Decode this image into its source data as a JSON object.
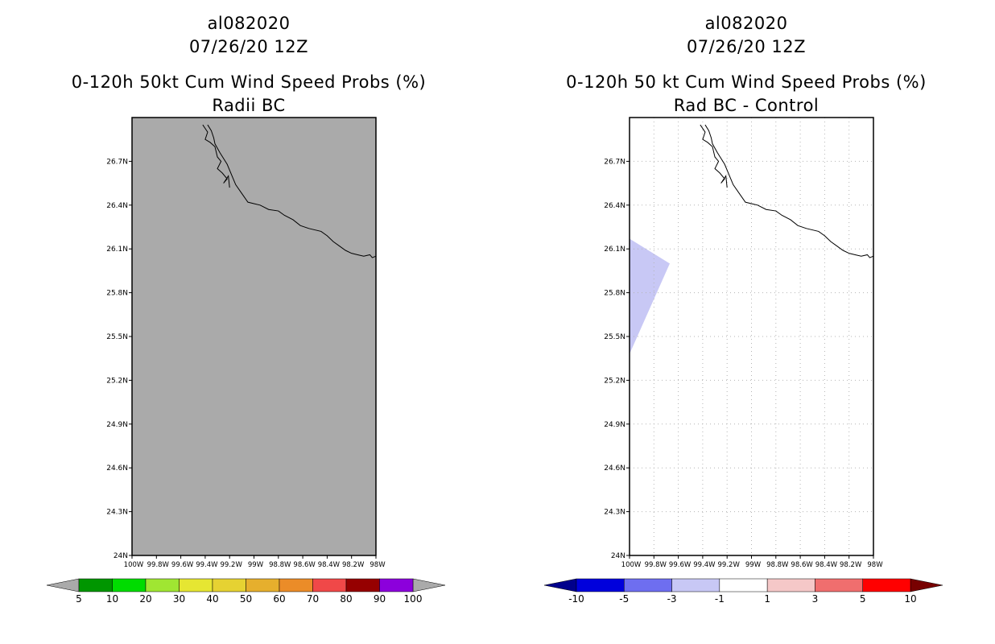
{
  "left_panel": {
    "storm": "al082020",
    "date": "07/26/20 12Z",
    "title": "0-120h 50kt Cum Wind Speed Probs (%)",
    "subtitle": "Radii BC"
  },
  "right_panel": {
    "storm": "al082020",
    "date": "07/26/20 12Z",
    "title": "0-120h 50 kt Cum Wind Speed Probs (%)",
    "subtitle": "Rad BC - Control"
  },
  "chart_data": [
    {
      "type": "heatmap",
      "name": "Radii BC",
      "xlim": [
        -100,
        -98
      ],
      "ylim": [
        24,
        27
      ],
      "x_ticks": [
        -100,
        -99.8,
        -99.6,
        -99.4,
        -99.2,
        -99,
        -98.8,
        -98.6,
        -98.4,
        -98.2,
        -98
      ],
      "x_tick_labels": [
        "100W",
        "99.8W",
        "99.6W",
        "99.4W",
        "99.2W",
        "99W",
        "98.8W",
        "98.6W",
        "98.4W",
        "98.2W",
        "98W"
      ],
      "y_ticks": [
        24,
        24.3,
        24.6,
        24.9,
        25.2,
        25.5,
        25.8,
        26.1,
        26.4,
        26.7
      ],
      "y_tick_labels": [
        "24N",
        "24.3N",
        "24.6N",
        "24.9N",
        "25.2N",
        "25.5N",
        "25.8N",
        "26.1N",
        "26.4N",
        "26.7N"
      ],
      "grid": false,
      "field_fill": "#aaaaaa",
      "colorbar": {
        "labels": [
          "5",
          "10",
          "20",
          "30",
          "40",
          "50",
          "60",
          "70",
          "80",
          "90",
          "100"
        ],
        "colors": [
          "#009600",
          "#00dc00",
          "#a0e632",
          "#e6e632",
          "#e6d232",
          "#e6af2d",
          "#eb8c28",
          "#f04848",
          "#960000",
          "#8c00dc"
        ],
        "under_color": "#aaaaaa",
        "over_color": "#aaaaaa"
      }
    },
    {
      "type": "heatmap",
      "name": "Rad BC - Control",
      "xlim": [
        -100,
        -98
      ],
      "ylim": [
        24,
        27
      ],
      "x_ticks": [
        -100,
        -99.8,
        -99.6,
        -99.4,
        -99.2,
        -99,
        -98.8,
        -98.6,
        -98.4,
        -98.2,
        -98
      ],
      "x_tick_labels": [
        "100W",
        "99.8W",
        "99.6W",
        "99.4W",
        "99.2W",
        "99W",
        "98.8W",
        "98.6W",
        "98.4W",
        "98.2W",
        "98W"
      ],
      "y_ticks": [
        24,
        24.3,
        24.6,
        24.9,
        25.2,
        25.5,
        25.8,
        26.1,
        26.4,
        26.7
      ],
      "y_tick_labels": [
        "24N",
        "24.3N",
        "24.6N",
        "24.9N",
        "25.2N",
        "25.5N",
        "25.8N",
        "26.1N",
        "26.4N",
        "26.7N"
      ],
      "grid": true,
      "shaded_region": {
        "label": "-3 to -1",
        "color": "#c8c8f5",
        "lon": [
          -100,
          -99.67,
          -100
        ],
        "lat": [
          26.17,
          26.0,
          25.38
        ]
      },
      "colorbar": {
        "labels": [
          "-10",
          "-5",
          "-3",
          "-1",
          "1",
          "3",
          "5",
          "10"
        ],
        "colors": [
          "#0000dc",
          "#6e6ef0",
          "#c8c8f5",
          "#ffffff",
          "#f5c8c8",
          "#f06e6e",
          "#ff0000"
        ],
        "under_color": "#00008c",
        "over_color": "#780000"
      }
    }
  ],
  "coastline": {
    "lon": [
      -99.38,
      -99.35,
      -99.33,
      -99.32,
      -99.28,
      -99.22,
      -99.18,
      -99.15,
      -99.1,
      -99.05,
      -99.0,
      -98.95,
      -98.88,
      -98.8,
      -98.75,
      -98.68,
      -98.62,
      -98.55,
      -98.45,
      -98.4,
      -98.35,
      -98.3,
      -98.25,
      -98.2,
      -98.15,
      -98.1,
      -98.05,
      -98.03,
      -98.0
    ],
    "lat": [
      26.95,
      26.91,
      26.86,
      26.82,
      26.76,
      26.68,
      26.6,
      26.54,
      26.48,
      26.42,
      26.41,
      26.4,
      26.37,
      26.36,
      26.33,
      26.3,
      26.26,
      26.24,
      26.22,
      26.19,
      26.15,
      26.12,
      26.09,
      26.07,
      26.06,
      26.05,
      26.06,
      26.04,
      26.05
    ]
  },
  "coastline_inlet": {
    "lon": [
      -99.42,
      -99.38,
      -99.4,
      -99.36,
      -99.32,
      -99.3,
      -99.27,
      -99.3,
      -99.26,
      -99.22,
      -99.25,
      -99.21,
      -99.2
    ],
    "lat": [
      26.95,
      26.9,
      26.85,
      26.83,
      26.8,
      26.73,
      26.7,
      26.65,
      26.62,
      26.58,
      26.55,
      26.6,
      26.52
    ]
  }
}
